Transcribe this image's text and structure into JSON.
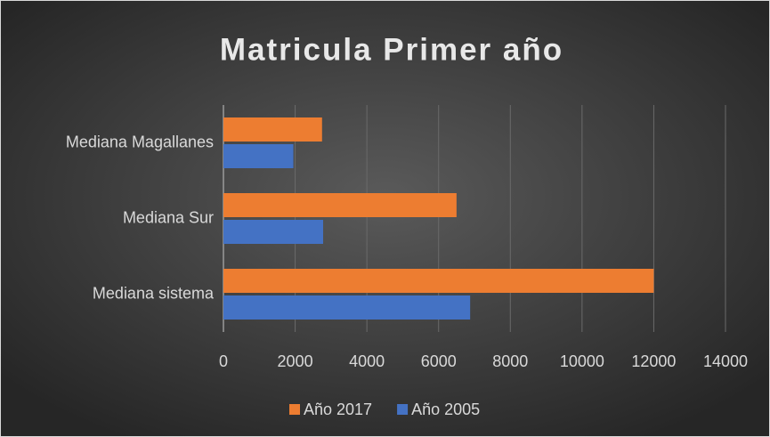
{
  "chart_data": {
    "type": "bar",
    "orientation": "horizontal",
    "title": "Matricula Primer año",
    "categories": [
      "Mediana Magallanes",
      "Mediana Sur",
      "Mediana sistema"
    ],
    "series": [
      {
        "name": "Año 2017",
        "color": "#ed7d31",
        "values": [
          2750,
          6500,
          12000
        ]
      },
      {
        "name": "Año 2005",
        "color": "#4472c4",
        "values": [
          1950,
          2780,
          6880
        ]
      }
    ],
    "xlim": [
      0,
      14000
    ],
    "xticks": [
      0,
      2000,
      4000,
      6000,
      8000,
      10000,
      12000,
      14000
    ],
    "grid": true,
    "legend": "bottom"
  }
}
